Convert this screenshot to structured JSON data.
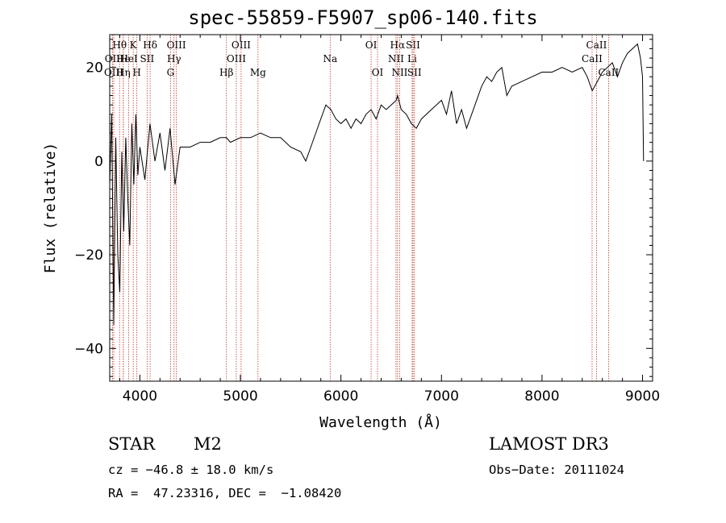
{
  "chart_data": {
    "type": "line",
    "title": "spec-55859-F5907_sp06-140.fits",
    "xlabel": "Wavelength (Å)",
    "ylabel": "Flux (relative)",
    "xlim": [
      3700,
      9100
    ],
    "ylim": [
      -47,
      27
    ],
    "x_ticks": [
      4000,
      5000,
      6000,
      7000,
      8000,
      9000
    ],
    "y_ticks": [
      -40,
      -20,
      0,
      20
    ],
    "series": [
      {
        "color": "#000000",
        "x": [
          3700,
          3720,
          3740,
          3760,
          3780,
          3800,
          3820,
          3840,
          3860,
          3880,
          3900,
          3920,
          3940,
          3960,
          3980,
          4000,
          4050,
          4100,
          4150,
          4200,
          4250,
          4300,
          4350,
          4400,
          4500,
          4600,
          4700,
          4800,
          4860,
          4900,
          5000,
          5100,
          5200,
          5300,
          5400,
          5500,
          5600,
          5650,
          5700,
          5750,
          5800,
          5850,
          5900,
          5950,
          6000,
          6050,
          6100,
          6150,
          6200,
          6250,
          6300,
          6350,
          6400,
          6450,
          6500,
          6550,
          6563,
          6600,
          6650,
          6700,
          6750,
          6800,
          6900,
          7000,
          7050,
          7100,
          7150,
          7200,
          7250,
          7300,
          7350,
          7400,
          7450,
          7500,
          7550,
          7600,
          7650,
          7700,
          7800,
          7900,
          8000,
          8100,
          8200,
          8300,
          8400,
          8450,
          8500,
          8550,
          8600,
          8650,
          8700,
          8750,
          8800,
          8850,
          8900,
          8950,
          8980,
          9000,
          9010
        ],
        "y": [
          -5,
          10,
          -35,
          5,
          -20,
          -28,
          2,
          -15,
          5,
          -8,
          -18,
          8,
          -5,
          10,
          -3,
          3,
          -4,
          8,
          0,
          6,
          -2,
          7,
          -5,
          3,
          3,
          4,
          4,
          5,
          5,
          4,
          5,
          5,
          6,
          5,
          5,
          3,
          2,
          0,
          3,
          6,
          9,
          12,
          11,
          9,
          8,
          9,
          7,
          9,
          8,
          10,
          11,
          9,
          12,
          11,
          12,
          13,
          14,
          11,
          10,
          8,
          7,
          9,
          11,
          13,
          10,
          15,
          8,
          11,
          7,
          10,
          13,
          16,
          18,
          17,
          19,
          20,
          14,
          16,
          17,
          18,
          19,
          19,
          20,
          19,
          20,
          18,
          15,
          17,
          19,
          20,
          21,
          18,
          21,
          23,
          24,
          25,
          22,
          18,
          0
        ]
      }
    ],
    "lines": [
      {
        "label": "Hθ",
        "x": 3798,
        "row": 0
      },
      {
        "label": "OII",
        "x": 3727,
        "row": 1
      },
      {
        "label": "OIII",
        "x": 3740,
        "row": 2
      },
      {
        "label": "He",
        "x": 3835,
        "row": 1
      },
      {
        "label": "Hη",
        "x": 3835,
        "row": 2
      },
      {
        "label": "K",
        "x": 3934,
        "row": 0
      },
      {
        "label": "H",
        "x": 3970,
        "row": 2
      },
      {
        "label": "HeI",
        "x": 3889,
        "row": 1
      },
      {
        "label": "SII",
        "x": 4072,
        "row": 1
      },
      {
        "label": "Hδ",
        "x": 4102,
        "row": 0
      },
      {
        "label": "OIII",
        "x": 4363,
        "row": 0
      },
      {
        "label": "Hγ",
        "x": 4340,
        "row": 1
      },
      {
        "label": "G",
        "x": 4305,
        "row": 2
      },
      {
        "label": "Hβ",
        "x": 4861,
        "row": 2
      },
      {
        "label": "OIII",
        "x": 4959,
        "row": 1
      },
      {
        "label": "OIII",
        "x": 5007,
        "row": 0
      },
      {
        "label": "Mg",
        "x": 5175,
        "row": 2
      },
      {
        "label": "Na",
        "x": 5893,
        "row": 1
      },
      {
        "label": "OI",
        "x": 6300,
        "row": 0
      },
      {
        "label": "OI",
        "x": 6364,
        "row": 2
      },
      {
        "label": "Hα",
        "x": 6563,
        "row": 0
      },
      {
        "label": "NII",
        "x": 6548,
        "row": 1
      },
      {
        "label": "NII",
        "x": 6584,
        "row": 2
      },
      {
        "label": "SII",
        "x": 6717,
        "row": 0
      },
      {
        "label": "Li",
        "x": 6708,
        "row": 1
      },
      {
        "label": "SII",
        "x": 6731,
        "row": 2
      },
      {
        "label": "CaII",
        "x": 8542,
        "row": 0
      },
      {
        "label": "CaII",
        "x": 8498,
        "row": 1
      },
      {
        "label": "CaII",
        "x": 8662,
        "row": 2
      }
    ],
    "grid": false
  },
  "info": {
    "class_label": "STAR",
    "subclass": "M2",
    "survey": "LAMOST DR3",
    "cz": "cz = −46.8 ± 18.0 km/s",
    "obs_date": "Obs−Date: 20111024",
    "coords": "RA =  47.23316, DEC =  −1.08420"
  }
}
